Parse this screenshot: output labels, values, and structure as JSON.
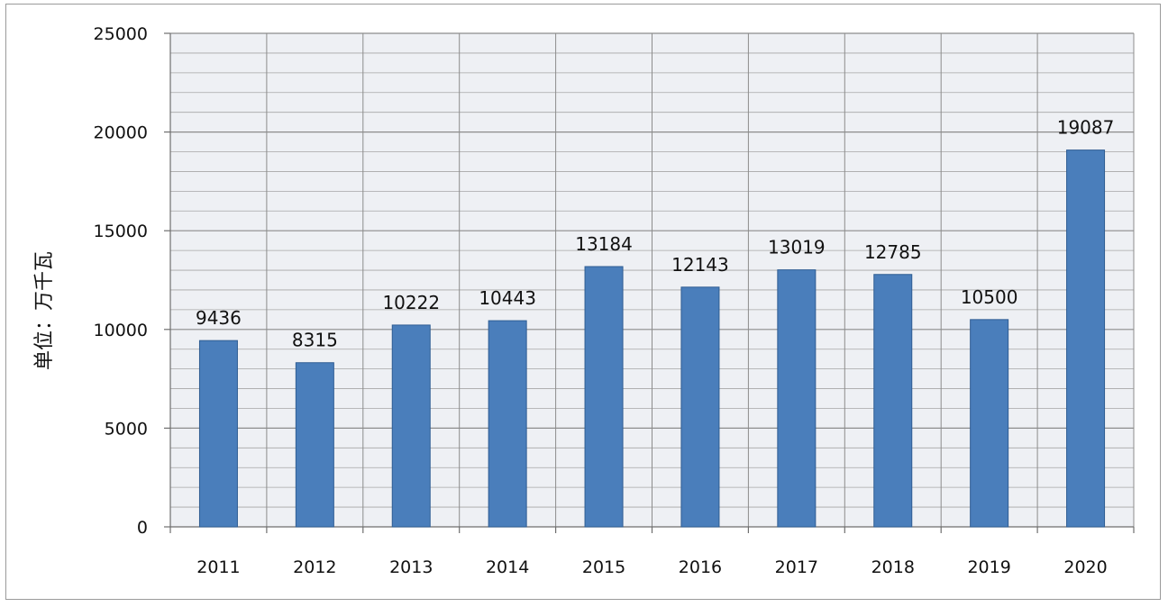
{
  "chart_data": {
    "type": "bar",
    "title": "",
    "xlabel": "",
    "ylabel": "单位：万千瓦",
    "categories": [
      "2011",
      "2012",
      "2013",
      "2014",
      "2015",
      "2016",
      "2017",
      "2018",
      "2019",
      "2020"
    ],
    "values": [
      9436,
      8315,
      10222,
      10443,
      13184,
      12143,
      13019,
      12785,
      10500,
      19087
    ],
    "ylim": [
      0,
      25000
    ],
    "yticks": [
      0,
      5000,
      10000,
      15000,
      20000,
      25000
    ],
    "grid": true,
    "legend": "none",
    "colors": {
      "bar": "#4a7ebb",
      "bar_edge": "#2f5d93",
      "grid": "#a6a6a6",
      "plot_bg": "#eef0f4"
    }
  }
}
